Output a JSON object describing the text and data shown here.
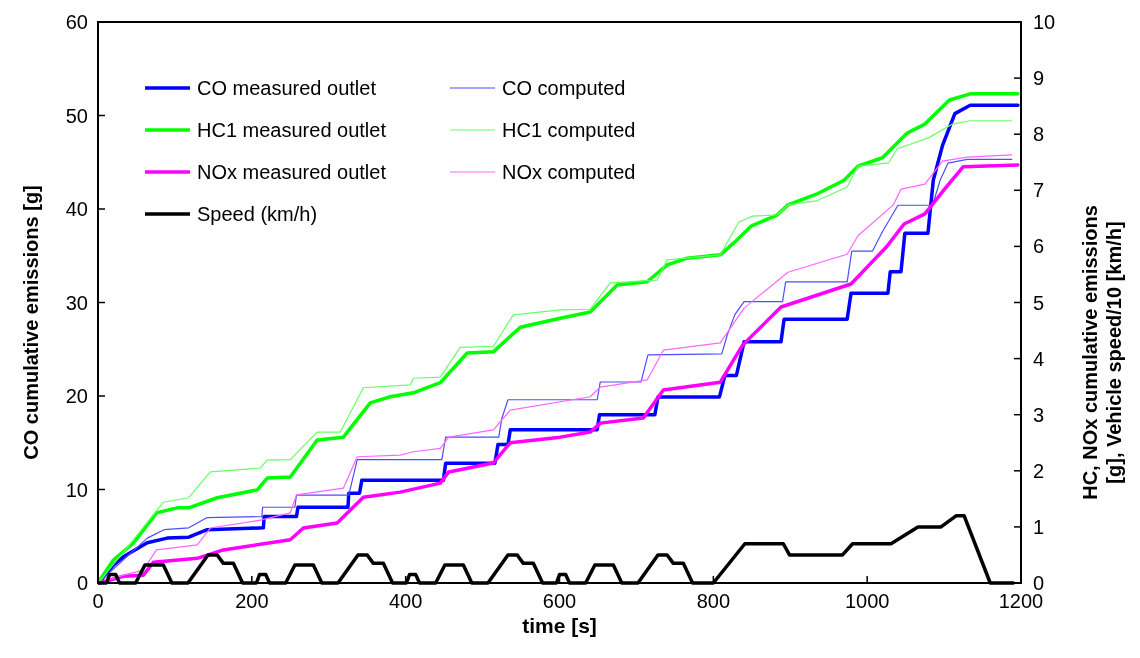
{
  "chart_data": {
    "type": "line",
    "xlabel": "time [s]",
    "ylabel": "CO cumulative emissions [g]",
    "y2label": "HC, NOx cumulative emissions\n[g], Vehicle speed/10 [km/h]",
    "xlim": [
      0,
      1200
    ],
    "xticks": [
      0,
      200,
      400,
      600,
      800,
      1000,
      1200
    ],
    "ylim": [
      0,
      60
    ],
    "yticks": [
      0,
      10,
      20,
      30,
      40,
      50,
      60
    ],
    "y2lim": [
      0,
      10
    ],
    "y2ticks": [
      0,
      1,
      2,
      3,
      4,
      5,
      6,
      7,
      8,
      9,
      10
    ],
    "legend": "top left",
    "grid": false,
    "marker": "none",
    "series": [
      {
        "name": "CO measured outlet",
        "color": "#0000ff",
        "x": [
          0,
          2,
          20,
          33,
          64,
          90,
          118,
          142,
          215,
          216,
          258,
          260,
          325,
          326,
          340,
          343,
          393,
          449,
          452,
          516,
          520,
          533,
          536,
          649,
          652,
          724,
          728,
          808,
          815,
          830,
          840,
          888,
          892,
          974,
          979,
          1027,
          1030,
          1044,
          1049,
          1079,
          1086,
          1098,
          1114,
          1134,
          1196
        ],
        "values": [
          0,
          0.1,
          1.9,
          2.8,
          4.3,
          4.8,
          4.9,
          5.7,
          5.9,
          7.1,
          7.1,
          8.1,
          8.1,
          9.6,
          9.6,
          11.0,
          11.0,
          11.0,
          12.8,
          12.8,
          14.8,
          14.8,
          16.4,
          16.4,
          18.0,
          18.0,
          19.9,
          19.9,
          22.2,
          22.2,
          25.8,
          25.8,
          28.2,
          28.2,
          31.0,
          31.0,
          33.3,
          33.3,
          37.4,
          37.4,
          43.1,
          46.8,
          50.2,
          51.1,
          51.1
        ]
      },
      {
        "name": "CO computed",
        "color": "#4d4dff",
        "x": [
          0,
          64,
          86,
          118,
          142,
          213,
          214,
          256,
          258,
          326,
          337,
          447,
          452,
          521,
          525,
          533,
          649,
          653,
          706,
          715,
          811,
          818,
          828,
          840,
          890,
          894,
          974,
          980,
          1007,
          1020,
          1040,
          1085,
          1095,
          1105,
          1130,
          1188
        ],
        "values": [
          0,
          4.8,
          5.7,
          5.9,
          7.0,
          7.1,
          8.1,
          8.1,
          9.4,
          9.4,
          13.2,
          13.2,
          15.6,
          15.6,
          17.6,
          19.6,
          19.6,
          21.5,
          21.5,
          24.4,
          24.5,
          26.5,
          28.7,
          30.1,
          30.1,
          32.2,
          32.2,
          35.5,
          35.5,
          37.6,
          40.4,
          40.4,
          43.1,
          44.9,
          45.3,
          45.3
        ],
        "axis": "y"
      },
      {
        "name": "HC1 measured outlet",
        "color": "#00ff00",
        "x": [
          0,
          20,
          46,
          76,
          103,
          118,
          155,
          207,
          220,
          250,
          285,
          319,
          354,
          380,
          410,
          445,
          480,
          514,
          549,
          601,
          640,
          675,
          714,
          740,
          766,
          809,
          828,
          849,
          883,
          897,
          934,
          970,
          988,
          1020,
          1052,
          1075,
          1107,
          1134,
          1196
        ],
        "values": [
          0,
          0.41,
          0.71,
          1.25,
          1.34,
          1.34,
          1.52,
          1.66,
          1.87,
          1.89,
          2.55,
          2.6,
          3.21,
          3.32,
          3.39,
          3.57,
          4.1,
          4.12,
          4.56,
          4.72,
          4.83,
          5.31,
          5.37,
          5.67,
          5.79,
          5.85,
          6.08,
          6.36,
          6.56,
          6.74,
          6.93,
          7.18,
          7.43,
          7.58,
          8.02,
          8.18,
          8.61,
          8.72,
          8.72
        ],
        "axis": "y2"
      },
      {
        "name": "HC1 computed",
        "color": "#66ff66",
        "x": [
          0,
          46,
          85,
          118,
          146,
          211,
          220,
          250,
          285,
          315,
          345,
          406,
          410,
          445,
          471,
          514,
          540,
          601,
          640,
          666,
          727,
          740,
          809,
          833,
          851,
          883,
          897,
          934,
          974,
          988,
          1028,
          1039,
          1079,
          1111,
          1134,
          1188
        ],
        "values": [
          0,
          0.77,
          1.44,
          1.52,
          1.98,
          2.05,
          2.19,
          2.2,
          2.69,
          2.69,
          3.48,
          3.53,
          3.65,
          3.67,
          4.2,
          4.22,
          4.78,
          4.87,
          4.88,
          5.35,
          5.4,
          5.76,
          5.85,
          6.43,
          6.54,
          6.56,
          6.74,
          6.81,
          7.06,
          7.43,
          7.49,
          7.74,
          7.93,
          8.18,
          8.24,
          8.24
        ],
        "axis": "y2"
      },
      {
        "name": "NOx measured outlet",
        "color": "#ff00ff",
        "x": [
          0,
          2,
          33,
          59,
          72,
          129,
          163,
          207,
          250,
          267,
          311,
          345,
          393,
          445,
          456,
          514,
          536,
          601,
          640,
          653,
          709,
          735,
          809,
          838,
          888,
          979,
          1025,
          1048,
          1075,
          1103,
          1125,
          1196
        ],
        "values": [
          0,
          0,
          0.12,
          0.14,
          0.37,
          0.44,
          0.59,
          0.68,
          0.77,
          0.98,
          1.07,
          1.53,
          1.62,
          1.78,
          1.98,
          2.14,
          2.5,
          2.6,
          2.69,
          2.85,
          2.94,
          3.44,
          3.58,
          4.24,
          4.92,
          5.33,
          5.99,
          6.4,
          6.58,
          7.06,
          7.42,
          7.45
        ],
        "axis": "y2"
      },
      {
        "name": "NOx computed",
        "color": "#ff66ff",
        "x": [
          0,
          2,
          33,
          59,
          76,
          129,
          146,
          211,
          250,
          258,
          319,
          337,
          393,
          410,
          445,
          456,
          514,
          536,
          640,
          653,
          714,
          735,
          809,
          840,
          897,
          974,
          988,
          1034,
          1044,
          1075,
          1098,
          1130,
          1188
        ],
        "values": [
          0,
          0,
          0.14,
          0.23,
          0.59,
          0.68,
          0.98,
          1.12,
          1.25,
          1.57,
          1.69,
          2.25,
          2.28,
          2.34,
          2.4,
          2.6,
          2.73,
          3.08,
          3.32,
          3.49,
          3.62,
          4.15,
          4.28,
          4.9,
          5.54,
          5.86,
          6.19,
          6.74,
          7.02,
          7.11,
          7.52,
          7.59,
          7.63
        ],
        "axis": "y2"
      },
      {
        "name": "Speed (km/h)",
        "color": "#000000",
        "x": [
          0,
          11,
          15,
          23,
          28,
          49,
          61,
          85,
          96,
          117,
          143,
          155,
          163,
          176,
          188,
          195,
          206,
          210,
          218,
          223,
          244,
          256,
          280,
          291,
          312,
          338,
          350,
          358,
          371,
          383,
          390,
          401,
          405,
          413,
          418,
          439,
          451,
          475,
          486,
          507,
          533,
          545,
          553,
          566,
          578,
          585,
          596,
          600,
          608,
          613,
          634,
          646,
          670,
          681,
          702,
          728,
          740,
          748,
          761,
          773,
          780,
          800,
          841,
          891,
          899,
          968,
          981,
          1031,
          1066,
          1096,
          1116,
          1126,
          1160,
          1190
        ],
        "values": [
          0,
          0,
          0.15,
          0.15,
          0,
          0,
          0.32,
          0.32,
          0,
          0,
          0.5,
          0.5,
          0.35,
          0.35,
          0,
          0,
          0,
          0.15,
          0.15,
          0,
          0,
          0.32,
          0.32,
          0,
          0,
          0.5,
          0.5,
          0.35,
          0.35,
          0,
          0,
          0,
          0.15,
          0.15,
          0,
          0,
          0.32,
          0.32,
          0,
          0,
          0.5,
          0.5,
          0.35,
          0.35,
          0,
          0,
          0,
          0.15,
          0.15,
          0,
          0,
          0.32,
          0.32,
          0,
          0,
          0.5,
          0.5,
          0.35,
          0.35,
          0,
          0,
          0,
          0.7,
          0.7,
          0.5,
          0.5,
          0.7,
          0.7,
          1.0,
          1.0,
          1.2,
          1.2,
          0,
          0
        ],
        "axis": "y2"
      }
    ]
  }
}
